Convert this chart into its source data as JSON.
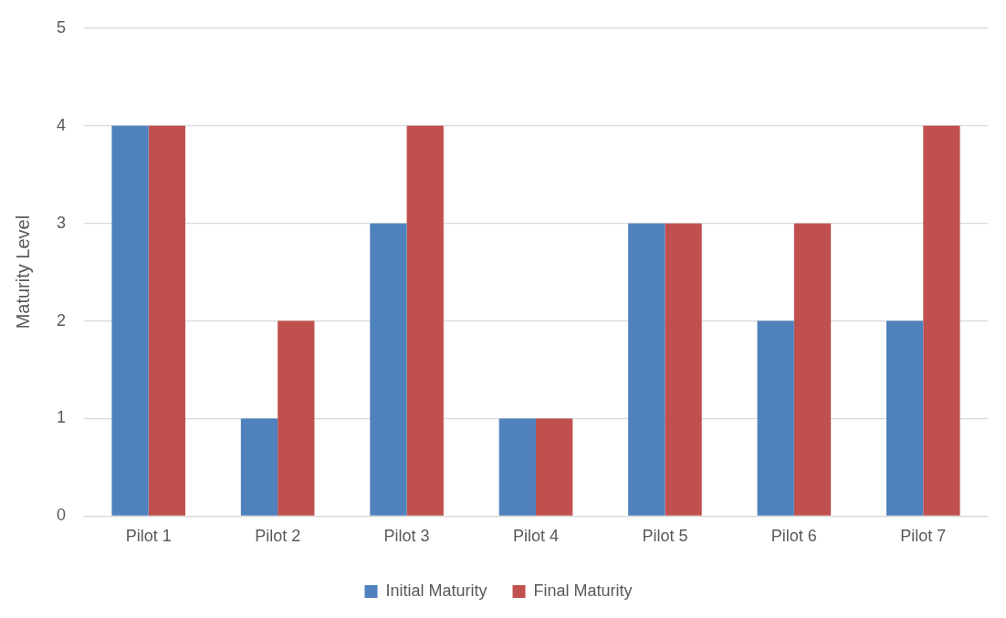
{
  "chart_data": {
    "type": "bar",
    "ylabel": "Maturity Level",
    "categories": [
      "Pilot 1",
      "Pilot 2",
      "Pilot 3",
      "Pilot 4",
      "Pilot 5",
      "Pilot 6",
      "Pilot 7"
    ],
    "series": [
      {
        "name": "Initial Maturity",
        "color": "#4f81bd",
        "values": [
          4,
          1,
          3,
          1,
          3,
          2,
          2
        ]
      },
      {
        "name": "Final Maturity",
        "color": "#c0504d",
        "values": [
          4,
          2,
          4,
          1,
          3,
          3,
          4
        ]
      }
    ],
    "ylim": [
      0,
      5
    ],
    "yticks": [
      0,
      1,
      2,
      3,
      4,
      5
    ],
    "grid": "y",
    "legend": "bottom"
  }
}
